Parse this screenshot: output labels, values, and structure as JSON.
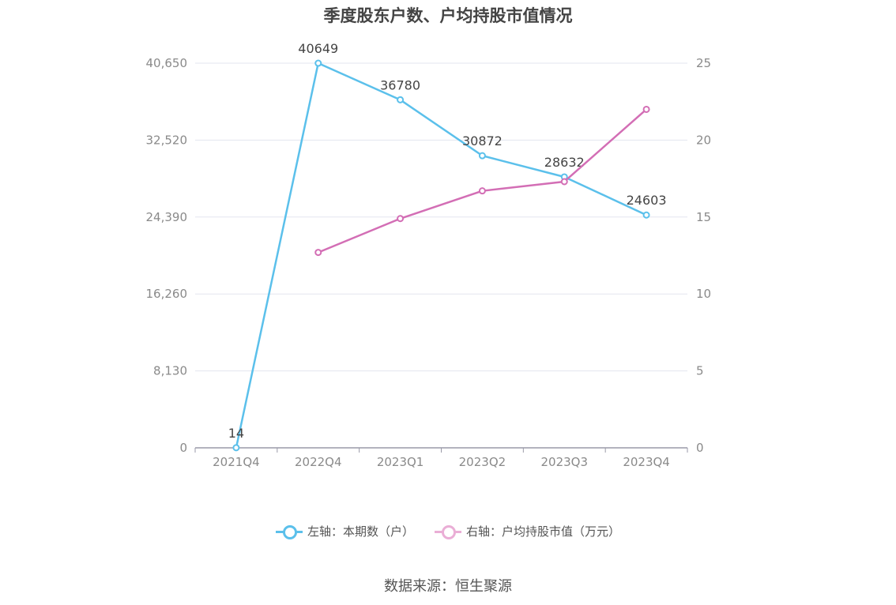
{
  "chart_data": {
    "type": "line",
    "title": "季度股东户数、户均持股市值情况",
    "categories": [
      "2021Q4",
      "2022Q4",
      "2023Q1",
      "2023Q2",
      "2023Q3",
      "2023Q4"
    ],
    "y_left": {
      "ticks": [
        "0",
        "8,130",
        "16,260",
        "24,390",
        "32,520",
        "40,650"
      ],
      "range": [
        0,
        40650
      ]
    },
    "y_right": {
      "ticks": [
        "0",
        "5",
        "10",
        "15",
        "20",
        "25"
      ],
      "range": [
        0,
        25
      ]
    },
    "grid": true,
    "legend_position": "bottom",
    "series": [
      {
        "name": "左轴：本期数（户）",
        "axis": "left",
        "color": "#5bc0eb",
        "values": [
          14,
          40649,
          36780,
          30872,
          28632,
          24603
        ],
        "labels": [
          "14",
          "40649",
          "36780",
          "30872",
          "28632",
          "24603"
        ]
      },
      {
        "name": "右轴：户均持股市值（万元）",
        "axis": "right",
        "color": "#d36eb5",
        "legend_color": "#eaaed6",
        "values": [
          null,
          12.7,
          14.9,
          16.7,
          17.3,
          22.0
        ]
      }
    ]
  },
  "source": "数据来源：恒生聚源"
}
